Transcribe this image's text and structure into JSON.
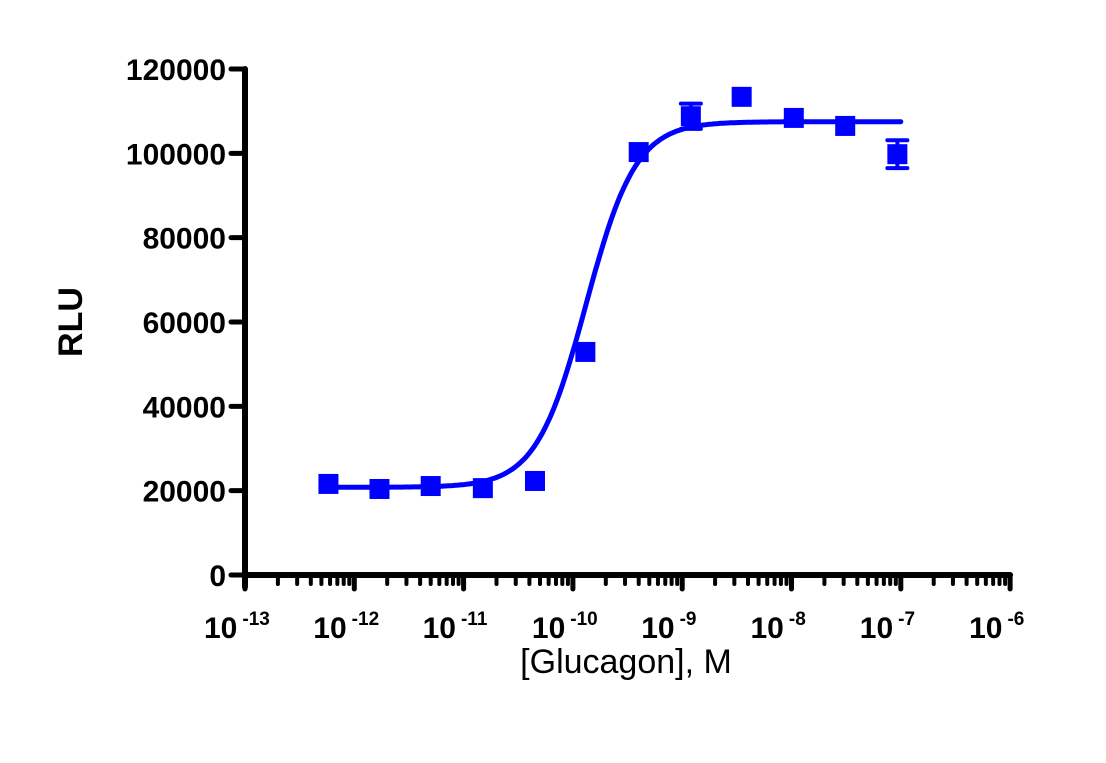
{
  "chart_data": {
    "type": "scatter",
    "title": "",
    "xlabel": "[Glucagon], M",
    "ylabel": "RLU",
    "x_scale": "log",
    "xlim": [
      1e-13,
      1e-06
    ],
    "ylim": [
      0,
      120000
    ],
    "x_tick_labels": [
      {
        "base": "10",
        "exp": "-13"
      },
      {
        "base": "10",
        "exp": "-12"
      },
      {
        "base": "10",
        "exp": "-11"
      },
      {
        "base": "10",
        "exp": "-10"
      },
      {
        "base": "10",
        "exp": "-9"
      },
      {
        "base": "10",
        "exp": "-8"
      },
      {
        "base": "10",
        "exp": "-7"
      },
      {
        "base": "10",
        "exp": "-6"
      }
    ],
    "y_ticks": [
      0,
      20000,
      40000,
      60000,
      80000,
      100000,
      120000
    ],
    "y_tick_labels": [
      "0",
      "20000",
      "40000",
      "60000",
      "80000",
      "100000",
      "120000"
    ],
    "grid": false,
    "legend": null,
    "color": "#0000ff",
    "series": [
      {
        "name": "Glucagon",
        "marker": "square",
        "x": [
          5.8e-13,
          1.7e-12,
          5e-12,
          1.5e-11,
          4.5e-11,
          1.3e-10,
          4e-10,
          1.2e-09,
          3.5e-09,
          1.05e-08,
          3.1e-08,
          9.3e-08
        ],
        "y": [
          21600,
          20400,
          21100,
          20600,
          22300,
          52900,
          100300,
          108800,
          113400,
          108400,
          106500,
          99800
        ],
        "error": [
          0,
          0,
          0,
          0,
          0,
          0,
          0,
          3000,
          0,
          0,
          0,
          3300
        ]
      }
    ],
    "fit": {
      "type": "sigmoidal dose-response",
      "bottom": 20800,
      "top": 107500,
      "log_ec50": -9.88,
      "hill_slope": 1.9,
      "x_range": [
        5.8e-13,
        1e-07
      ]
    }
  }
}
